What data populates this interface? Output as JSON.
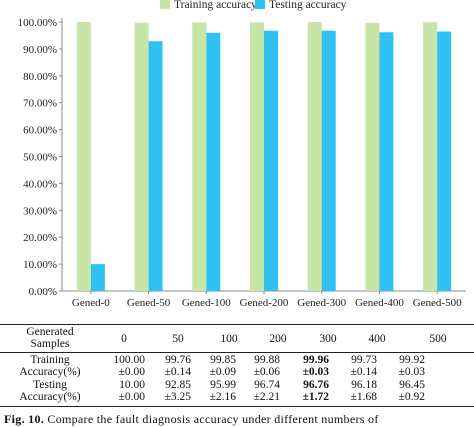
{
  "chart_data": {
    "type": "bar",
    "categories": [
      "Gened-0",
      "Gened-50",
      "Gened-100",
      "Gened-200",
      "Gened-300",
      "Gened-400",
      "Gened-500"
    ],
    "series": [
      {
        "name": "Training accuracy",
        "values": [
          100.0,
          99.76,
          99.85,
          99.88,
          99.96,
          99.73,
          99.92
        ],
        "color": "#c6e5a6"
      },
      {
        "name": "Testing accuracy",
        "values": [
          10.0,
          92.85,
          95.99,
          96.74,
          96.76,
          96.18,
          96.45
        ],
        "color": "#2fc1f3"
      }
    ],
    "y_ticks": [
      "0.00%",
      "10.00%",
      "20.00%",
      "30.00%",
      "40.00%",
      "50.00%",
      "60.00%",
      "70.00%",
      "80.00%",
      "90.00%",
      "100.00%"
    ],
    "ylim": [
      0,
      100
    ],
    "legend_position": "top",
    "grid": false
  },
  "table": {
    "header": [
      "Generated Samples",
      "0",
      "50",
      "100",
      "200",
      "300",
      "400",
      "500"
    ],
    "rows": [
      {
        "label": "Training Accuracy(%)",
        "values": [
          "100.00",
          "99.76",
          "99.85",
          "99.88",
          "99.96",
          "99.73",
          "99.92"
        ],
        "sd": [
          "±0.00",
          "±0.14",
          "±0.09",
          "±0.06",
          "±0.03",
          "±0.14",
          "±0.03"
        ],
        "bold_index": 4
      },
      {
        "label": "Testing Accuracy(%)",
        "values": [
          "10.00",
          "92.85",
          "95.99",
          "96.74",
          "96.76",
          "96.18",
          "96.45"
        ],
        "sd": [
          "±0.00",
          "±3.25",
          "±2.16",
          "±2.21",
          "±1.72",
          "±1.68",
          "±0.92"
        ],
        "bold_index": 4
      }
    ]
  },
  "caption": {
    "label": "Fig. 10.",
    "text": "Compare the fault diagnosis accuracy under different numbers of"
  }
}
